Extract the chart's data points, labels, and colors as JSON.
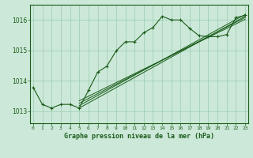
{
  "title": "Graphe pression niveau de la mer (hPa)",
  "xtick_labels": [
    "0",
    "1",
    "2",
    "3",
    "4",
    "5",
    "6",
    "7",
    "8",
    "9",
    "10",
    "11",
    "12",
    "13",
    "14",
    "15",
    "16",
    "17",
    "18",
    "19",
    "20",
    "21",
    "22",
    "23"
  ],
  "ylim": [
    1012.6,
    1016.5
  ],
  "yticks": [
    1013,
    1014,
    1015,
    1016
  ],
  "background_color": "#cce8d8",
  "grid_color": "#99ccb0",
  "line_color": "#1a5c1a",
  "title_color": "#1a5c1a",
  "main_series": [
    [
      0,
      1013.78
    ],
    [
      1,
      1013.22
    ],
    [
      2,
      1013.1
    ],
    [
      3,
      1013.22
    ],
    [
      4,
      1013.22
    ],
    [
      5,
      1013.1
    ],
    [
      6,
      1013.68
    ],
    [
      7,
      1014.28
    ],
    [
      8,
      1014.48
    ],
    [
      9,
      1014.98
    ],
    [
      10,
      1015.28
    ],
    [
      11,
      1015.28
    ],
    [
      12,
      1015.58
    ],
    [
      13,
      1015.75
    ],
    [
      14,
      1016.12
    ],
    [
      15,
      1016.0
    ],
    [
      16,
      1016.0
    ],
    [
      17,
      1015.72
    ],
    [
      18,
      1015.48
    ],
    [
      19,
      1015.45
    ],
    [
      20,
      1015.45
    ],
    [
      21,
      1015.52
    ],
    [
      22,
      1016.08
    ],
    [
      23,
      1016.15
    ]
  ],
  "straight_lines": [
    [
      [
        5,
        1013.1
      ],
      [
        23,
        1016.12
      ]
    ],
    [
      [
        5,
        1013.18
      ],
      [
        23,
        1016.18
      ]
    ],
    [
      [
        5,
        1013.26
      ],
      [
        23,
        1016.08
      ]
    ],
    [
      [
        5,
        1013.34
      ],
      [
        23,
        1016.02
      ]
    ]
  ],
  "figsize": [
    3.2,
    2.0
  ],
  "dpi": 100
}
